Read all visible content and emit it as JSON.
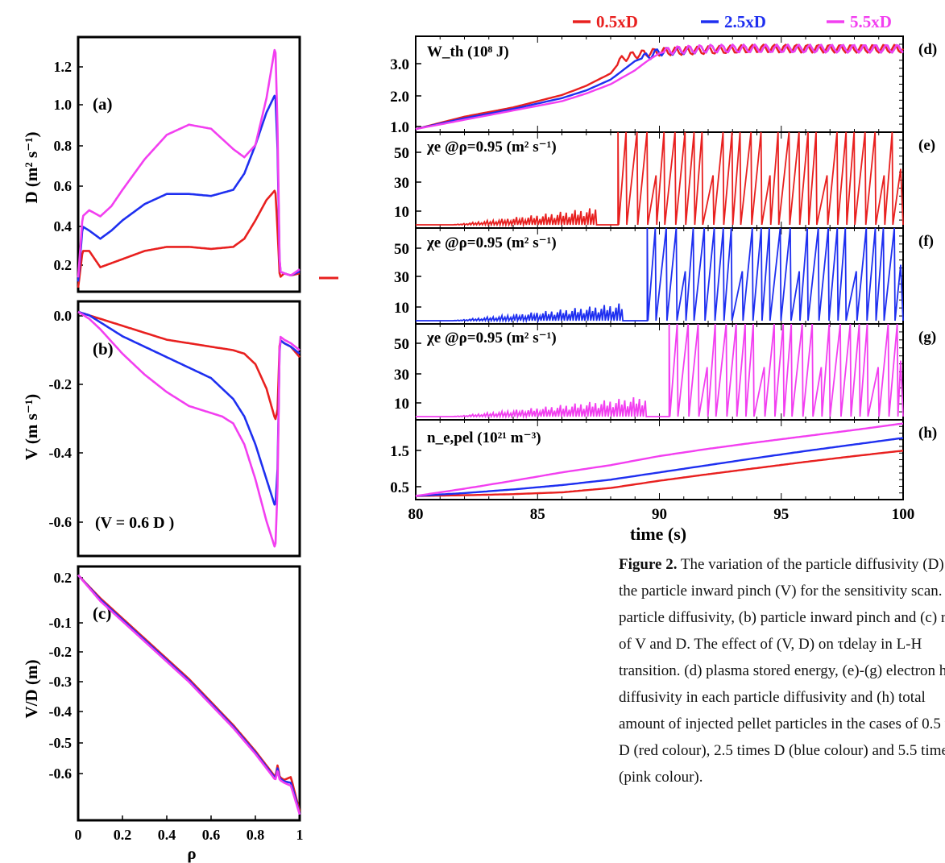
{
  "colors": {
    "red": "#e8201f",
    "blue": "#1e2ff0",
    "pink": "#f23ff0",
    "axis": "#000000"
  },
  "legend": [
    "0.5xD",
    "2.5xD",
    "5.5xD"
  ],
  "caption": {
    "label": "Figure 2.",
    "text": " The variation of the particle diffusivity (D) and the particle inward pinch (V) for the sensitivity scan. (a) particle diffusivity, (b) particle inward pinch and (c) ratio of V and D. The effect of (V, D) on τdelay in L-H transition. (d) plasma stored energy, (e)-(g) electron heat diffusivity in each particle diffusivity and (h) total amount of injected pellet particles in the cases of 0.5 time D (red colour), 2.5 times D (blue colour) and 5.5 times D (pink colour)."
  },
  "chart_data": [
    {
      "type": "line",
      "panel": "(a)",
      "ylabel": "D (m² s⁻¹)",
      "xlim": [
        0,
        1
      ],
      "ylim": [
        0.1,
        1.35
      ],
      "yticks": [
        "1.2",
        "1.0",
        "0.8",
        "0.6",
        "0.4",
        "0.2"
      ],
      "series": [
        {
          "name": "0.5xD",
          "x": [
            0.0,
            0.02,
            0.05,
            0.1,
            0.2,
            0.3,
            0.4,
            0.5,
            0.6,
            0.7,
            0.75,
            0.8,
            0.85,
            0.89,
            0.9,
            0.91,
            0.93,
            0.96,
            1.0
          ],
          "y": [
            0.12,
            0.3,
            0.3,
            0.22,
            0.26,
            0.3,
            0.32,
            0.32,
            0.31,
            0.32,
            0.36,
            0.45,
            0.55,
            0.6,
            0.4,
            0.17,
            0.19,
            0.18,
            0.19
          ]
        },
        {
          "name": "2.5xD",
          "x": [
            0.0,
            0.02,
            0.05,
            0.1,
            0.15,
            0.2,
            0.3,
            0.4,
            0.5,
            0.6,
            0.7,
            0.75,
            0.8,
            0.85,
            0.89,
            0.9,
            0.91,
            0.93,
            0.96,
            1.0
          ],
          "y": [
            0.15,
            0.42,
            0.4,
            0.36,
            0.4,
            0.45,
            0.53,
            0.58,
            0.58,
            0.57,
            0.6,
            0.68,
            0.82,
            0.98,
            1.07,
            0.8,
            0.2,
            0.19,
            0.18,
            0.2
          ]
        },
        {
          "name": "5.5xD",
          "x": [
            0.0,
            0.02,
            0.05,
            0.1,
            0.15,
            0.2,
            0.3,
            0.4,
            0.5,
            0.6,
            0.65,
            0.7,
            0.75,
            0.8,
            0.85,
            0.89,
            0.9,
            0.91,
            0.93,
            0.96,
            1.0
          ],
          "y": [
            0.17,
            0.47,
            0.5,
            0.47,
            0.52,
            0.6,
            0.75,
            0.87,
            0.92,
            0.9,
            0.85,
            0.8,
            0.76,
            0.82,
            1.05,
            1.31,
            0.9,
            0.2,
            0.19,
            0.18,
            0.21
          ]
        }
      ]
    },
    {
      "type": "line",
      "panel": "(b)",
      "ylabel": "V (m s⁻¹)",
      "annotation": "(V = 0.6 D )",
      "xlim": [
        0,
        1
      ],
      "ylim": [
        -0.7,
        0.03
      ],
      "yticks": [
        "0.0",
        "-0.2",
        "-0.4",
        "-0.6"
      ],
      "series": [
        {
          "name": "0.5xD",
          "x": [
            0.0,
            0.05,
            0.1,
            0.2,
            0.3,
            0.4,
            0.5,
            0.6,
            0.7,
            0.75,
            0.8,
            0.85,
            0.89,
            0.9,
            0.91,
            0.93,
            0.96,
            1.0
          ],
          "y": [
            0.0,
            -0.01,
            -0.02,
            -0.04,
            -0.06,
            -0.08,
            -0.09,
            -0.1,
            -0.11,
            -0.12,
            -0.15,
            -0.22,
            -0.31,
            -0.28,
            -0.08,
            -0.09,
            -0.1,
            -0.13
          ]
        },
        {
          "name": "2.5xD",
          "x": [
            0.0,
            0.05,
            0.1,
            0.2,
            0.3,
            0.4,
            0.5,
            0.6,
            0.7,
            0.75,
            0.8,
            0.85,
            0.89,
            0.9,
            0.91,
            0.93,
            0.96,
            1.0
          ],
          "y": [
            0.0,
            -0.01,
            -0.03,
            -0.07,
            -0.1,
            -0.13,
            -0.16,
            -0.19,
            -0.25,
            -0.3,
            -0.38,
            -0.48,
            -0.56,
            -0.45,
            -0.08,
            -0.09,
            -0.1,
            -0.12
          ]
        },
        {
          "name": "5.5xD",
          "x": [
            0.0,
            0.05,
            0.1,
            0.2,
            0.3,
            0.4,
            0.5,
            0.6,
            0.65,
            0.7,
            0.75,
            0.8,
            0.85,
            0.89,
            0.9,
            0.91,
            0.93,
            0.96,
            1.0
          ],
          "y": [
            0.0,
            -0.02,
            -0.05,
            -0.12,
            -0.18,
            -0.23,
            -0.27,
            -0.29,
            -0.3,
            -0.32,
            -0.38,
            -0.48,
            -0.6,
            -0.68,
            -0.5,
            -0.07,
            -0.08,
            -0.09,
            -0.11
          ]
        }
      ]
    },
    {
      "type": "line",
      "panel": "(c)",
      "ylabel": "V/D (m)",
      "xlabel": "ρ",
      "xlim": [
        0,
        1
      ],
      "ylim": [
        -0.65,
        0.23
      ],
      "xticks": [
        "0",
        "0.2",
        "0.4",
        "0.6",
        "0.8",
        "1"
      ],
      "yticks": [
        "0.2",
        "-0.1",
        "-0.2",
        "-0.3",
        "-0.4",
        "-0.5",
        "-0.6"
      ],
      "series": [
        {
          "name": "0.5xD",
          "x": [
            0.0,
            0.1,
            0.2,
            0.3,
            0.4,
            0.5,
            0.6,
            0.7,
            0.8,
            0.87,
            0.89,
            0.9,
            0.91,
            0.93,
            0.96,
            0.98,
            1.0
          ],
          "y": [
            0.2,
            0.12,
            0.05,
            -0.02,
            -0.09,
            -0.16,
            -0.24,
            -0.32,
            -0.41,
            -0.48,
            -0.5,
            -0.46,
            -0.5,
            -0.51,
            -0.5,
            -0.56,
            -0.62
          ]
        },
        {
          "name": "2.5xD",
          "x": [
            0.0,
            0.1,
            0.2,
            0.3,
            0.4,
            0.5,
            0.6,
            0.7,
            0.8,
            0.87,
            0.89,
            0.9,
            0.91,
            0.93,
            0.96,
            0.98,
            1.0
          ],
          "y": [
            0.2,
            0.115,
            0.045,
            -0.025,
            -0.095,
            -0.165,
            -0.245,
            -0.325,
            -0.415,
            -0.485,
            -0.505,
            -0.47,
            -0.505,
            -0.515,
            -0.52,
            -0.57,
            -0.63
          ]
        },
        {
          "name": "5.5xD",
          "x": [
            0.0,
            0.1,
            0.2,
            0.3,
            0.4,
            0.5,
            0.6,
            0.7,
            0.8,
            0.87,
            0.89,
            0.9,
            0.91,
            0.93,
            0.96,
            0.98,
            1.0
          ],
          "y": [
            0.2,
            0.11,
            0.04,
            -0.03,
            -0.1,
            -0.17,
            -0.25,
            -0.33,
            -0.42,
            -0.49,
            -0.51,
            -0.48,
            -0.51,
            -0.52,
            -0.53,
            -0.58,
            -0.63
          ]
        }
      ]
    },
    {
      "type": "line",
      "panel": "(d)",
      "label": "W_th (10⁸ J)",
      "xlim": [
        80,
        100
      ],
      "ylim": [
        0.8,
        3.9
      ],
      "yticks": [
        "3.0",
        "2.0",
        "1.0"
      ],
      "series": [
        {
          "name": "0.5xD",
          "x": [
            80,
            82,
            84,
            86,
            87,
            88,
            88.5,
            89,
            90,
            92,
            94,
            96,
            98,
            100
          ],
          "y": [
            0.9,
            1.3,
            1.6,
            2.0,
            2.3,
            2.7,
            3.2,
            3.3,
            3.4,
            3.45,
            3.5,
            3.5,
            3.5,
            3.5
          ]
        },
        {
          "name": "2.5xD",
          "x": [
            80,
            82,
            84,
            86,
            87,
            88,
            88.5,
            89,
            89.5,
            90,
            92,
            94,
            96,
            98,
            100
          ],
          "y": [
            0.9,
            1.25,
            1.55,
            1.9,
            2.15,
            2.5,
            2.8,
            3.1,
            3.25,
            3.4,
            3.5,
            3.5,
            3.5,
            3.5,
            3.5
          ]
        },
        {
          "name": "5.5xD",
          "x": [
            80,
            82,
            84,
            86,
            87,
            88,
            89,
            89.5,
            90,
            90.5,
            92,
            94,
            96,
            98,
            100
          ],
          "y": [
            0.9,
            1.2,
            1.5,
            1.8,
            2.05,
            2.35,
            2.8,
            3.1,
            3.35,
            3.45,
            3.5,
            3.5,
            3.5,
            3.5,
            3.5
          ]
        }
      ]
    },
    {
      "type": "line",
      "panel": "(e)",
      "label": "χe @ρ=0.95 (m² s⁻¹)",
      "series_name": "0.5xD",
      "xlim": [
        80,
        100
      ],
      "ylim": [
        0,
        60
      ],
      "yticks": [
        "50",
        "30",
        "10"
      ],
      "baseline": 2,
      "spike_start": 81.5,
      "ramp_end": 87.5,
      "ramp_max": 13,
      "lh_time": 88.3,
      "spike_top": 60
    },
    {
      "type": "line",
      "panel": "(f)",
      "label": "χe @ρ=0.95 (m² s⁻¹)",
      "series_name": "2.5xD",
      "xlim": [
        80,
        100
      ],
      "ylim": [
        0,
        60
      ],
      "yticks": [
        "50",
        "30",
        "10"
      ],
      "baseline": 2,
      "spike_start": 81.5,
      "ramp_end": 88.5,
      "ramp_max": 13,
      "lh_time": 89.5,
      "spike_top": 60
    },
    {
      "type": "line",
      "panel": "(g)",
      "label": "χe @ρ=0.95 (m² s⁻¹)",
      "series_name": "5.5xD",
      "xlim": [
        80,
        100
      ],
      "ylim": [
        0,
        60
      ],
      "yticks": [
        "50",
        "30",
        "10"
      ],
      "baseline": 2,
      "spike_start": 81.5,
      "ramp_end": 89.5,
      "ramp_max": 15,
      "lh_time": 90.4,
      "spike_top": 60
    },
    {
      "type": "line",
      "panel": "(h)",
      "label": "n_e,pel (10²¹ m⁻³)",
      "xlabel": "time (s)",
      "xlim": [
        80,
        100
      ],
      "ylim": [
        0.1,
        2.3
      ],
      "xticks": [
        "80",
        "85",
        "90",
        "95",
        "100"
      ],
      "yticks": [
        "1.5",
        "0.5"
      ],
      "series": [
        {
          "name": "0.5xD",
          "x": [
            80,
            82,
            84,
            86,
            88,
            90,
            92,
            94,
            96,
            98,
            100
          ],
          "y": [
            0.2,
            0.22,
            0.25,
            0.3,
            0.42,
            0.62,
            0.8,
            0.97,
            1.14,
            1.3,
            1.45
          ]
        },
        {
          "name": "2.5xD",
          "x": [
            80,
            82,
            84,
            86,
            88,
            90,
            92,
            94,
            96,
            98,
            100
          ],
          "y": [
            0.2,
            0.28,
            0.38,
            0.5,
            0.65,
            0.85,
            1.05,
            1.25,
            1.44,
            1.62,
            1.8
          ]
        },
        {
          "name": "5.5xD",
          "x": [
            80,
            82,
            84,
            86,
            88,
            90,
            92,
            94,
            96,
            98,
            100
          ],
          "y": [
            0.2,
            0.4,
            0.62,
            0.85,
            1.05,
            1.3,
            1.5,
            1.68,
            1.85,
            2.02,
            2.2
          ]
        }
      ]
    }
  ]
}
